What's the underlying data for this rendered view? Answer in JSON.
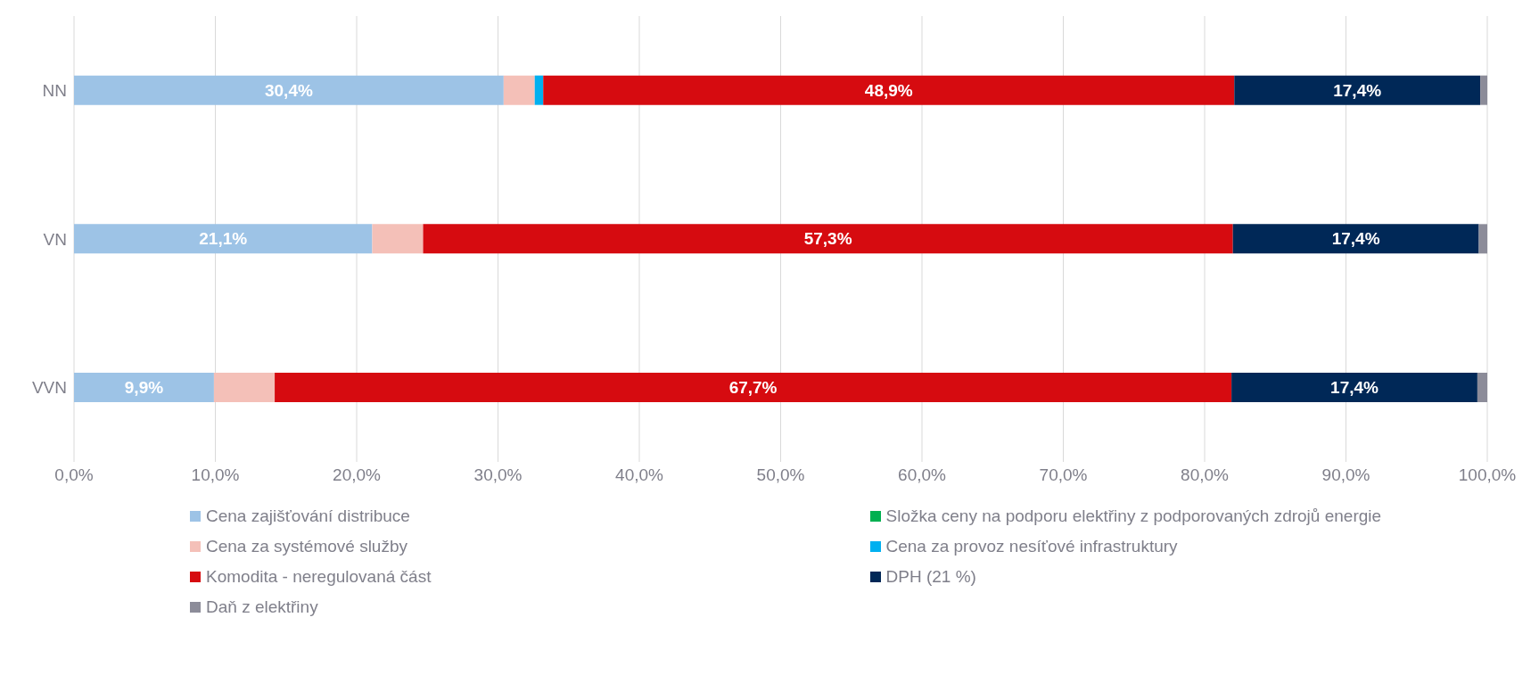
{
  "chart_data": {
    "type": "bar",
    "orientation": "horizontal",
    "stacked": true,
    "categories": [
      "NN",
      "VN",
      "VVN"
    ],
    "series": [
      {
        "name": "Cena zajišťování distribuce",
        "color": "#9dc3e6",
        "values": [
          30.4,
          21.1,
          9.9
        ],
        "value_labels": [
          "30,4%",
          "21,1%",
          "9,9%"
        ]
      },
      {
        "name": "Složka ceny na podporu elektřiny z podporovaných zdrojů energie",
        "color": "#00b050",
        "values": [
          0,
          0,
          0
        ]
      },
      {
        "name": "Cena za systémové služby",
        "color": "#f4c0b8",
        "values": [
          2.2,
          3.6,
          4.3
        ]
      },
      {
        "name": "Cena za provoz nesíťové infrastruktury",
        "color": "#00b0f0",
        "values": [
          0.6,
          0,
          0
        ]
      },
      {
        "name": "Komodita - neregulovaná část",
        "color": "#d60b10",
        "values": [
          48.9,
          57.3,
          67.7
        ],
        "value_labels": [
          "48,9%",
          "57,3%",
          "67,7%"
        ]
      },
      {
        "name": "DPH (21 %)",
        "color": "#002857",
        "values": [
          17.4,
          17.4,
          17.4
        ],
        "value_labels": [
          "17,4%",
          "17,4%",
          "17,4%"
        ]
      },
      {
        "name": "Daň z elektřiny",
        "color": "#8c8c99",
        "values": [
          0.5,
          0.6,
          0.7
        ]
      }
    ],
    "xlim": [
      0,
      100
    ],
    "xticks": [
      {
        "value": 0,
        "label": "0,0%"
      },
      {
        "value": 10,
        "label": "10,0%"
      },
      {
        "value": 20,
        "label": "20,0%"
      },
      {
        "value": 30,
        "label": "30,0%"
      },
      {
        "value": 40,
        "label": "40,0%"
      },
      {
        "value": 50,
        "label": "50,0%"
      },
      {
        "value": 60,
        "label": "60,0%"
      },
      {
        "value": 70,
        "label": "70,0%"
      },
      {
        "value": 80,
        "label": "80,0%"
      },
      {
        "value": 90,
        "label": "90,0%"
      },
      {
        "value": 100,
        "label": "100,0%"
      }
    ],
    "grid": "x",
    "legend": "bottom"
  }
}
